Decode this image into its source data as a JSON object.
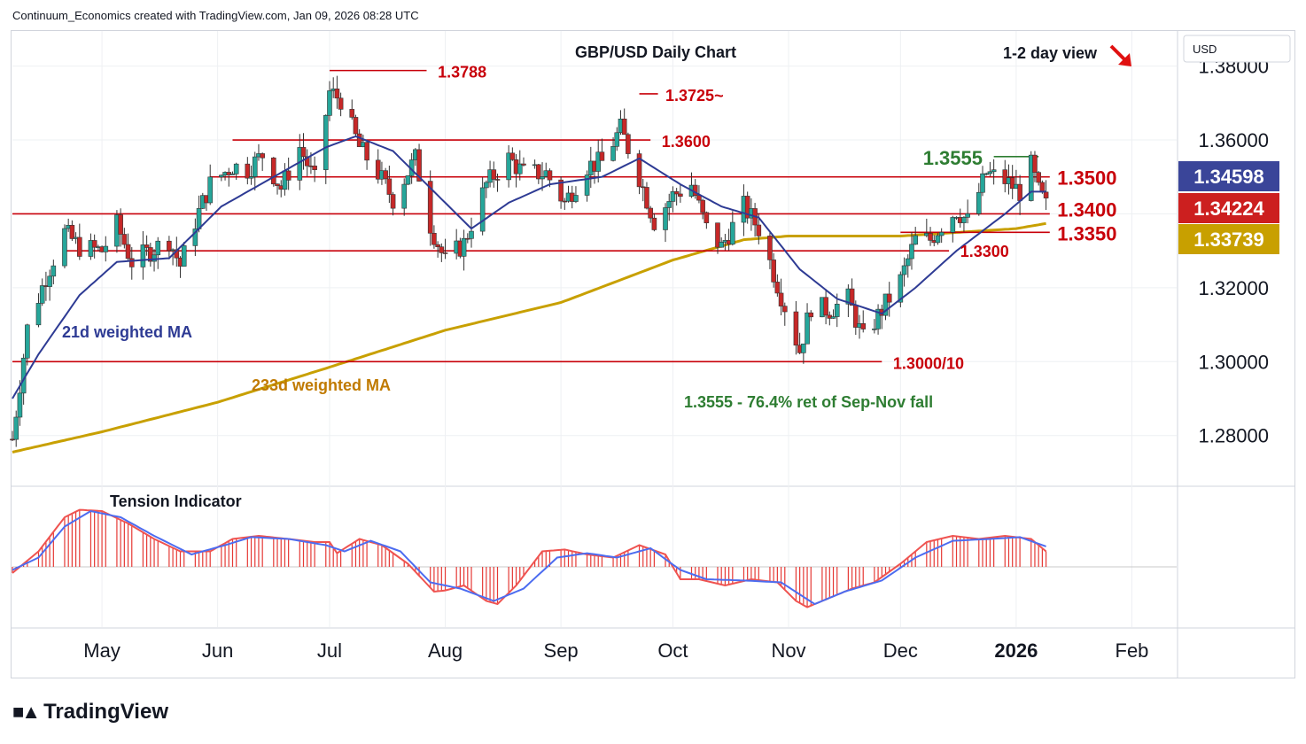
{
  "header": {
    "credit": "Continuum_Economics created with TradingView.com, Jan 09, 2026 08:28 UTC"
  },
  "footer": {
    "brand": "TradingView"
  },
  "colors": {
    "up": "#26a69a",
    "down": "#c62828",
    "level_line": "#c8000a",
    "wma21": "#2e3b94",
    "wma233": "#c8a000",
    "tension_fill": "#e53935",
    "tension_line": "#4c6cf0",
    "tension_red": "#ef5350",
    "badge_price": "#3a4599",
    "badge_close": "#cc1f1f",
    "badge_ma": "#c8a000"
  },
  "chart_data": [
    {
      "type": "candlestick",
      "title": "GBP/USD Daily Chart",
      "view": "1-2 day view",
      "view_arrow": "down-right-arrow-icon",
      "currency": "USD",
      "ylim": [
        1.2665,
        1.3895
      ],
      "y_ticks": [
        1.28,
        1.3,
        1.32,
        1.34,
        1.36,
        1.38
      ],
      "y_tick_labels": [
        "1.28000",
        "1.30000",
        "1.32000",
        "1.34000",
        "1.36000",
        "1.38000"
      ],
      "x_tick_labels": [
        "May",
        "Jun",
        "Jul",
        "Aug",
        "Sep",
        "Oct",
        "Nov",
        "Dec",
        "2026",
        "Feb"
      ],
      "x_tick_dates": [
        "2025-05-01",
        "2025-06-01",
        "2025-07-01",
        "2025-08-01",
        "2025-09-01",
        "2025-10-01",
        "2025-11-01",
        "2025-12-01",
        "2026-01-01",
        "2026-02-01"
      ],
      "x_range": [
        "2025-04-07",
        "2026-02-13"
      ],
      "close_anchors": [
        [
          "2025-04-07",
          1.279
        ],
        [
          "2025-04-11",
          1.309
        ],
        [
          "2025-04-16",
          1.323
        ],
        [
          "2025-04-21",
          1.335
        ],
        [
          "2025-04-25",
          1.331
        ],
        [
          "2025-05-01",
          1.33
        ],
        [
          "2025-05-05",
          1.337
        ],
        [
          "2025-05-09",
          1.327
        ],
        [
          "2025-05-14",
          1.33
        ],
        [
          "2025-05-19",
          1.333
        ],
        [
          "2025-05-22",
          1.326
        ],
        [
          "2025-05-26",
          1.338
        ],
        [
          "2025-05-30",
          1.348
        ],
        [
          "2025-06-05",
          1.353
        ],
        [
          "2025-06-09",
          1.352
        ],
        [
          "2025-06-13",
          1.356
        ],
        [
          "2025-06-18",
          1.347
        ],
        [
          "2025-06-23",
          1.358
        ],
        [
          "2025-06-27",
          1.349
        ],
        [
          "2025-07-01",
          1.373
        ],
        [
          "2025-07-04",
          1.371
        ],
        [
          "2025-07-09",
          1.358
        ],
        [
          "2025-07-14",
          1.351
        ],
        [
          "2025-07-18",
          1.344
        ],
        [
          "2025-07-24",
          1.355
        ],
        [
          "2025-07-28",
          1.337
        ],
        [
          "2025-08-01",
          1.327
        ],
        [
          "2025-08-06",
          1.332
        ],
        [
          "2025-08-12",
          1.348
        ],
        [
          "2025-08-18",
          1.355
        ],
        [
          "2025-08-22",
          1.351
        ],
        [
          "2025-08-28",
          1.351
        ],
        [
          "2025-09-02",
          1.343
        ],
        [
          "2025-09-08",
          1.353
        ],
        [
          "2025-09-12",
          1.354
        ],
        [
          "2025-09-17",
          1.363
        ],
        [
          "2025-09-22",
          1.35
        ],
        [
          "2025-09-26",
          1.338
        ],
        [
          "2025-10-01",
          1.345
        ],
        [
          "2025-10-06",
          1.348
        ],
        [
          "2025-10-10",
          1.336
        ],
        [
          "2025-10-14",
          1.331
        ],
        [
          "2025-10-20",
          1.342
        ],
        [
          "2025-10-24",
          1.336
        ],
        [
          "2025-10-30",
          1.318
        ],
        [
          "2025-11-04",
          1.303
        ],
        [
          "2025-11-07",
          1.315
        ],
        [
          "2025-11-12",
          1.314
        ],
        [
          "2025-11-17",
          1.317
        ],
        [
          "2025-11-21",
          1.306
        ],
        [
          "2025-11-26",
          1.314
        ],
        [
          "2025-12-01",
          1.322
        ],
        [
          "2025-12-05",
          1.333
        ],
        [
          "2025-12-09",
          1.333
        ],
        [
          "2025-12-12",
          1.337
        ],
        [
          "2025-12-16",
          1.341
        ],
        [
          "2025-12-19",
          1.338
        ],
        [
          "2025-12-24",
          1.351
        ],
        [
          "2025-12-29",
          1.349
        ],
        [
          "2026-01-02",
          1.346
        ],
        [
          "2026-01-05",
          1.353
        ],
        [
          "2026-01-07",
          1.346
        ],
        [
          "2026-01-09",
          1.3422
        ]
      ],
      "wma21_anchors": [
        [
          "2025-04-07",
          1.29
        ],
        [
          "2025-04-14",
          1.302
        ],
        [
          "2025-04-25",
          1.318
        ],
        [
          "2025-05-05",
          1.327
        ],
        [
          "2025-05-19",
          1.328
        ],
        [
          "2025-06-02",
          1.342
        ],
        [
          "2025-06-16",
          1.35
        ],
        [
          "2025-06-30",
          1.358
        ],
        [
          "2025-07-08",
          1.361
        ],
        [
          "2025-07-18",
          1.357
        ],
        [
          "2025-07-30",
          1.345
        ],
        [
          "2025-08-08",
          1.336
        ],
        [
          "2025-08-18",
          1.343
        ],
        [
          "2025-08-29",
          1.348
        ],
        [
          "2025-09-12",
          1.35
        ],
        [
          "2025-09-22",
          1.355
        ],
        [
          "2025-10-03",
          1.348
        ],
        [
          "2025-10-14",
          1.342
        ],
        [
          "2025-10-24",
          1.339
        ],
        [
          "2025-11-04",
          1.325
        ],
        [
          "2025-11-14",
          1.317
        ],
        [
          "2025-11-26",
          1.313
        ],
        [
          "2025-12-05",
          1.32
        ],
        [
          "2025-12-16",
          1.33
        ],
        [
          "2025-12-29",
          1.34
        ],
        [
          "2026-01-05",
          1.346
        ],
        [
          "2026-01-09",
          1.346
        ]
      ],
      "wma233_anchors": [
        [
          "2025-04-07",
          1.2755
        ],
        [
          "2025-05-01",
          1.281
        ],
        [
          "2025-06-01",
          1.289
        ],
        [
          "2025-07-01",
          1.2985
        ],
        [
          "2025-08-01",
          1.3085
        ],
        [
          "2025-09-01",
          1.316
        ],
        [
          "2025-10-01",
          1.3275
        ],
        [
          "2025-10-20",
          1.333
        ],
        [
          "2025-11-01",
          1.334
        ],
        [
          "2025-12-01",
          1.334
        ],
        [
          "2026-01-01",
          1.336
        ],
        [
          "2026-01-09",
          1.3374
        ]
      ],
      "levels": [
        {
          "label": "1.3788",
          "value": 1.3788,
          "from": "2025-07-01",
          "to": "2025-07-27",
          "color": "#c8000a"
        },
        {
          "label": "1.3725~",
          "value": 1.3725,
          "from": "2025-09-22",
          "to": "2025-09-27",
          "color": "#c8000a"
        },
        {
          "label": "1.3600",
          "value": 1.36,
          "from": "2025-06-05",
          "to": "2025-09-25",
          "color": "#c8000a"
        },
        {
          "label": "1.3555",
          "value": 1.3555,
          "from": "2025-12-26",
          "to": "2026-01-07",
          "color": "#2e7d32"
        },
        {
          "label": "1.3500",
          "value": 1.35,
          "from": "2025-05-30",
          "to": "2026-01-10",
          "color": "#c8000a"
        },
        {
          "label": "1.3400",
          "value": 1.34,
          "from": "2025-04-07",
          "to": "2026-01-10",
          "color": "#c8000a"
        },
        {
          "label": "1.3350",
          "value": 1.335,
          "from": "2025-12-01",
          "to": "2026-01-10",
          "color": "#c8000a"
        },
        {
          "label": "1.3300",
          "value": 1.33,
          "from": "2025-04-21",
          "to": "2025-12-14",
          "color": "#c8000a"
        },
        {
          "label": "1.3000/10",
          "value": 1.3,
          "from": "2025-04-07",
          "to": "2025-11-26",
          "color": "#c8000a"
        }
      ],
      "annotations": {
        "wma21_label": "21d weighted MA",
        "wma233_label": "233d weighted MA",
        "note": "1.3555 - 76.4% ret of Sep-Nov fall"
      },
      "price_badges": [
        {
          "label": "1.34598",
          "value": 1.34598,
          "color": "#3a4599"
        },
        {
          "label": "1.34224",
          "value": 1.34224,
          "color": "#cc1f1f"
        },
        {
          "label": "1.33739",
          "value": 1.33739,
          "color": "#c8a000"
        }
      ]
    },
    {
      "type": "oscillator",
      "title": "Tension Indicator",
      "ylim": [
        -1.0,
        1.0
      ],
      "histogram_anchors": [
        [
          "2025-04-07",
          -0.1
        ],
        [
          "2025-04-14",
          0.25
        ],
        [
          "2025-04-21",
          0.8
        ],
        [
          "2025-04-25",
          0.92
        ],
        [
          "2025-05-01",
          0.9
        ],
        [
          "2025-05-08",
          0.7
        ],
        [
          "2025-05-15",
          0.45
        ],
        [
          "2025-05-22",
          0.25
        ],
        [
          "2025-05-30",
          0.25
        ],
        [
          "2025-06-05",
          0.45
        ],
        [
          "2025-06-12",
          0.5
        ],
        [
          "2025-06-20",
          0.45
        ],
        [
          "2025-06-27",
          0.4
        ],
        [
          "2025-07-01",
          0.4
        ],
        [
          "2025-07-03",
          0.22
        ],
        [
          "2025-07-09",
          0.45
        ],
        [
          "2025-07-15",
          0.35
        ],
        [
          "2025-07-22",
          0.05
        ],
        [
          "2025-07-29",
          -0.4
        ],
        [
          "2025-08-01",
          -0.38
        ],
        [
          "2025-08-06",
          -0.3
        ],
        [
          "2025-08-12",
          -0.55
        ],
        [
          "2025-08-15",
          -0.6
        ],
        [
          "2025-08-20",
          -0.3
        ],
        [
          "2025-08-27",
          0.25
        ],
        [
          "2025-09-02",
          0.28
        ],
        [
          "2025-09-08",
          0.2
        ],
        [
          "2025-09-15",
          0.15
        ],
        [
          "2025-09-22",
          0.35
        ],
        [
          "2025-09-29",
          0.2
        ],
        [
          "2025-10-03",
          -0.2
        ],
        [
          "2025-10-08",
          -0.2
        ],
        [
          "2025-10-15",
          -0.3
        ],
        [
          "2025-10-22",
          -0.2
        ],
        [
          "2025-10-29",
          -0.25
        ],
        [
          "2025-11-03",
          -0.55
        ],
        [
          "2025-11-06",
          -0.65
        ],
        [
          "2025-11-12",
          -0.5
        ],
        [
          "2025-11-18",
          -0.35
        ],
        [
          "2025-11-24",
          -0.25
        ],
        [
          "2025-12-01",
          0.05
        ],
        [
          "2025-12-08",
          0.4
        ],
        [
          "2025-12-15",
          0.5
        ],
        [
          "2025-12-22",
          0.45
        ],
        [
          "2025-12-29",
          0.5
        ],
        [
          "2026-01-05",
          0.45
        ],
        [
          "2026-01-09",
          0.25
        ]
      ],
      "line_anchors": [
        [
          "2025-04-07",
          -0.05
        ],
        [
          "2025-04-14",
          0.15
        ],
        [
          "2025-04-21",
          0.65
        ],
        [
          "2025-04-28",
          0.9
        ],
        [
          "2025-05-06",
          0.8
        ],
        [
          "2025-05-15",
          0.5
        ],
        [
          "2025-05-25",
          0.2
        ],
        [
          "2025-06-03",
          0.35
        ],
        [
          "2025-06-10",
          0.48
        ],
        [
          "2025-06-20",
          0.45
        ],
        [
          "2025-06-30",
          0.35
        ],
        [
          "2025-07-05",
          0.25
        ],
        [
          "2025-07-12",
          0.42
        ],
        [
          "2025-07-20",
          0.25
        ],
        [
          "2025-07-28",
          -0.25
        ],
        [
          "2025-08-05",
          -0.35
        ],
        [
          "2025-08-14",
          -0.55
        ],
        [
          "2025-08-22",
          -0.35
        ],
        [
          "2025-08-31",
          0.15
        ],
        [
          "2025-09-08",
          0.22
        ],
        [
          "2025-09-16",
          0.15
        ],
        [
          "2025-09-25",
          0.3
        ],
        [
          "2025-10-03",
          -0.05
        ],
        [
          "2025-10-10",
          -0.2
        ],
        [
          "2025-10-20",
          -0.22
        ],
        [
          "2025-10-30",
          -0.25
        ],
        [
          "2025-11-08",
          -0.6
        ],
        [
          "2025-11-16",
          -0.4
        ],
        [
          "2025-11-26",
          -0.22
        ],
        [
          "2025-12-05",
          0.15
        ],
        [
          "2025-12-15",
          0.42
        ],
        [
          "2025-12-25",
          0.45
        ],
        [
          "2026-01-02",
          0.48
        ],
        [
          "2026-01-09",
          0.33
        ]
      ]
    }
  ]
}
